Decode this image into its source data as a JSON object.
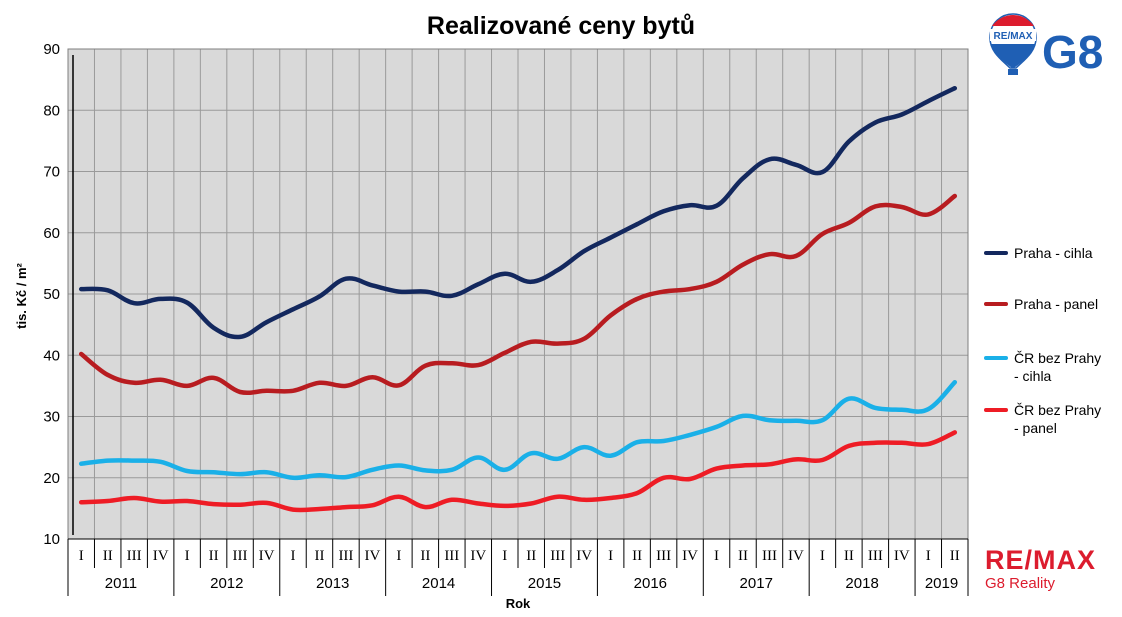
{
  "chart_data": {
    "type": "line",
    "title": "Realizované ceny bytů",
    "ylabel": "tis. Kč / m²",
    "xlabel": "Rok",
    "ylim": [
      10,
      90
    ],
    "yticks": [
      "10",
      "20",
      "30",
      "40",
      "50",
      "60",
      "70",
      "80",
      "90"
    ],
    "quarters": [
      "I",
      "II",
      "III",
      "IV",
      "I",
      "II",
      "III",
      "IV",
      "I",
      "II",
      "III",
      "IV",
      "I",
      "II",
      "III",
      "IV",
      "I",
      "II",
      "III",
      "IV",
      "I",
      "II",
      "III",
      "IV",
      "I",
      "II",
      "III",
      "IV",
      "I",
      "II",
      "III",
      "IV",
      "I",
      "II"
    ],
    "years": [
      "2011",
      "2012",
      "2013",
      "2014",
      "2015",
      "2016",
      "2017",
      "2018",
      "2019"
    ],
    "grid": true,
    "legend_position": "right",
    "series": [
      {
        "name": "Praha - cihla",
        "color": "#13285e",
        "values": [
          50.8,
          50.6,
          48.5,
          49.2,
          48.6,
          44.5,
          43.0,
          45.4,
          47.5,
          49.6,
          52.5,
          51.4,
          50.4,
          50.4,
          49.7,
          51.6,
          53.3,
          52.0,
          53.9,
          57.0,
          59.2,
          61.4,
          63.5,
          64.5,
          64.4,
          68.9,
          72.0,
          71.1,
          69.9,
          74.9,
          78.0,
          79.3,
          81.5,
          83.6
        ]
      },
      {
        "name": "Praha - panel",
        "color": "#b81c20",
        "values": [
          40.2,
          36.8,
          35.5,
          36.0,
          35.0,
          36.3,
          34.0,
          34.2,
          34.2,
          35.5,
          35.0,
          36.4,
          35.1,
          38.3,
          38.7,
          38.4,
          40.4,
          42.2,
          41.9,
          42.7,
          46.5,
          49.2,
          50.4,
          50.8,
          52.0,
          54.8,
          56.5,
          56.2,
          59.8,
          61.6,
          64.3,
          64.2,
          63.0,
          66.0
        ]
      },
      {
        "name": "ČR bez Prahy - cihla",
        "color": "#1ab0e8",
        "values": [
          22.3,
          22.8,
          22.8,
          22.6,
          21.1,
          20.9,
          20.6,
          20.9,
          20.0,
          20.4,
          20.1,
          21.3,
          22.0,
          21.2,
          21.3,
          23.3,
          21.3,
          24.0,
          23.1,
          25.0,
          23.6,
          25.8,
          26.0,
          27.0,
          28.3,
          30.1,
          29.4,
          29.3,
          29.4,
          32.9,
          31.4,
          31.1,
          31.2,
          35.6
        ]
      },
      {
        "name": "ČR bez Prahy - panel",
        "color": "#ee1c25",
        "values": [
          16.0,
          16.2,
          16.7,
          16.1,
          16.2,
          15.7,
          15.6,
          15.9,
          14.8,
          14.9,
          15.2,
          15.5,
          16.9,
          15.2,
          16.4,
          15.8,
          15.4,
          15.8,
          16.9,
          16.4,
          16.7,
          17.5,
          20.0,
          19.8,
          21.5,
          22.0,
          22.2,
          23.0,
          22.9,
          25.2,
          25.7,
          25.7,
          25.5,
          27.4
        ]
      }
    ]
  },
  "legend_items": [
    {
      "line1": "Praha - cihla",
      "line2": ""
    },
    {
      "line1": "Praha - panel",
      "line2": ""
    },
    {
      "line1": "ČR bez Prahy",
      "line2": "- cihla"
    },
    {
      "line1": "ČR bez Prahy",
      "line2": "- panel"
    }
  ],
  "logos": {
    "top_balloon_text": "RE/MAX",
    "top_brand": "G8",
    "bottom_word": "RE/MAX",
    "bottom_sub": "G8 Reality",
    "brand_red": "#dc1c2e",
    "brand_blue": "#1f5fb4"
  }
}
